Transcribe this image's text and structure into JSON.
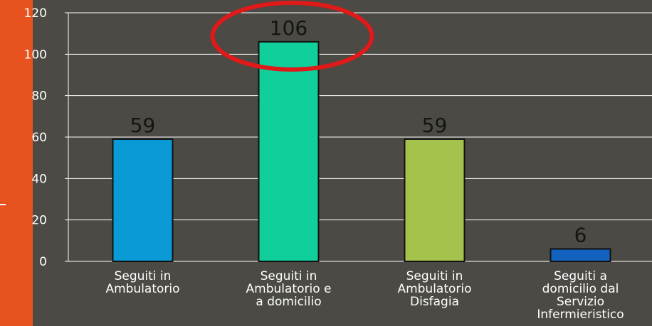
{
  "colors": {
    "background": "#4b4a44",
    "accent": "#e8521f",
    "highlight_ring": "#e01919",
    "grid": "#ffffff",
    "text": "#ffffff",
    "value_text": "#141414"
  },
  "chart_data": {
    "type": "bar",
    "title": "",
    "xlabel": "",
    "ylabel": "",
    "ylim": [
      0,
      120
    ],
    "yticks": [
      0,
      20,
      40,
      60,
      80,
      100,
      120
    ],
    "grid": true,
    "categories": [
      [
        "Seguiti in",
        "Ambulatorio"
      ],
      [
        "Seguiti in",
        "Ambulatorio e",
        "a domicilio"
      ],
      [
        "Seguiti in",
        "Ambulatorio",
        "Disfagia"
      ],
      [
        "Seguiti a",
        "domicilio dal",
        "Servizio",
        "Infermieristico"
      ]
    ],
    "values": [
      59,
      106,
      59,
      6
    ],
    "bar_colors": [
      "#0a9ad6",
      "#10cf9a",
      "#a5c24c",
      "#1462bf"
    ],
    "highlighted_index": 1
  }
}
